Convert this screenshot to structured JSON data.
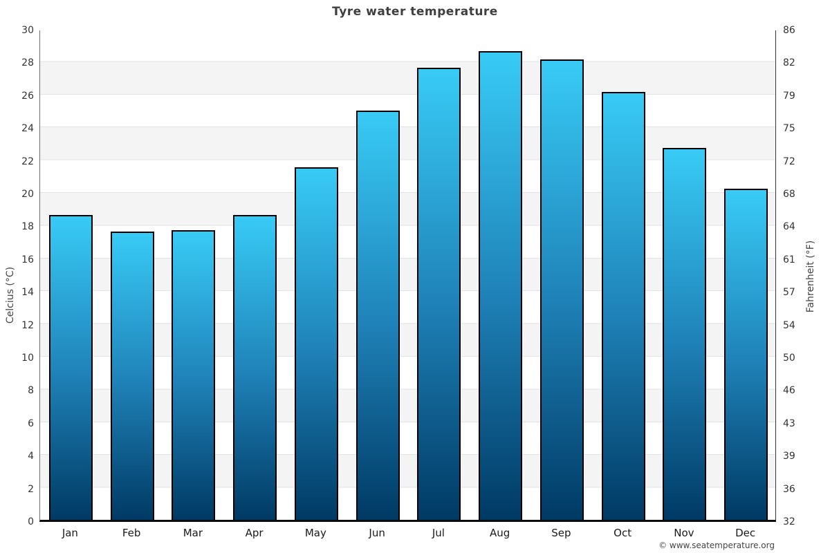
{
  "title": "Tyre water temperature",
  "footer": "© www.seatemperature.org",
  "axes": {
    "left_label": "Celcius (°C)",
    "right_label": "Fahrenheit (°F)",
    "left_ticks": [
      30,
      28,
      26,
      24,
      22,
      20,
      18,
      16,
      14,
      12,
      10,
      8,
      6,
      4,
      2,
      0
    ],
    "right_ticks": [
      86,
      82,
      79,
      75,
      72,
      68,
      64,
      61,
      57,
      54,
      50,
      46,
      43,
      39,
      36,
      32
    ],
    "ymin": 0,
    "ymax": 30
  },
  "colors": {
    "bar_gradient_top": "#38cbf5",
    "bar_gradient_mid": "#1f82b8",
    "bar_gradient_bottom": "#003a64",
    "bar_border": "#000000",
    "band_gray": "#f4f4f4",
    "band_white": "#ffffff",
    "grid_line": "#e2e2e2",
    "title_text": "#3f3f3f"
  },
  "chart_data": {
    "type": "bar",
    "title": "Tyre water temperature",
    "categories": [
      "Jan",
      "Feb",
      "Mar",
      "Apr",
      "May",
      "Jun",
      "Jul",
      "Aug",
      "Sep",
      "Oct",
      "Nov",
      "Dec"
    ],
    "values": [
      18.6,
      17.6,
      17.7,
      18.6,
      21.5,
      25.0,
      27.6,
      28.6,
      28.1,
      26.1,
      22.7,
      20.2
    ],
    "values_unit": "°C",
    "xlabel": "",
    "ylabel_left": "Celcius (°C)",
    "ylabel_right": "Fahrenheit (°F)",
    "ylim": [
      0,
      30
    ],
    "ytick_step": 2,
    "grid": "horizontal alternating bands every 2°C",
    "legend": "none",
    "watermark": "© www.seatemperature.org"
  }
}
